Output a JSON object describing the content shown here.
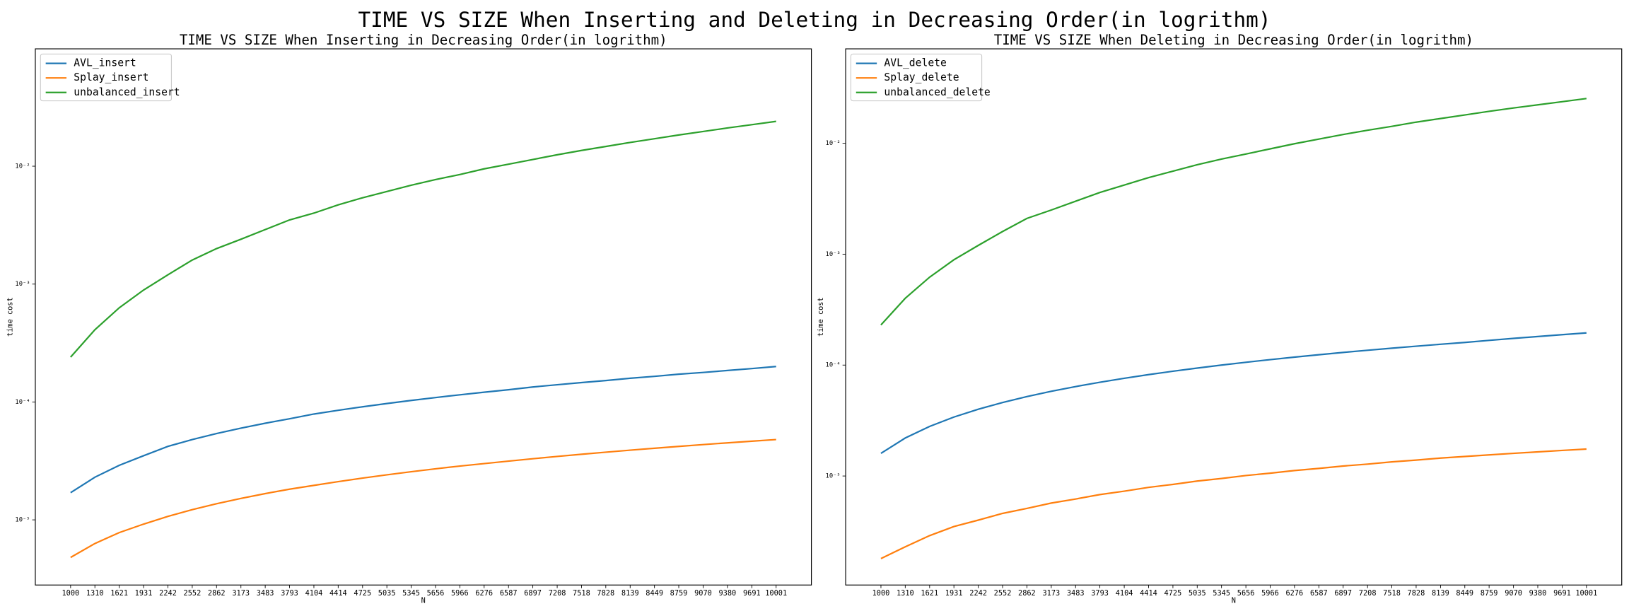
{
  "title": "TIME VS SIZE When Inserting and Deleting in Decreasing Order(in logrithm)",
  "chart_data": [
    {
      "type": "line",
      "title": "TIME VS SIZE When Inserting in Decreasing Order(in logrithm)",
      "x_label": "N",
      "y_label": "time cost",
      "log_y": true,
      "legend": "upper left",
      "x": [
        1000,
        1310,
        1621,
        1931,
        2242,
        2552,
        2862,
        3173,
        3483,
        3793,
        4104,
        4414,
        4725,
        5035,
        5345,
        5656,
        5966,
        6276,
        6587,
        6897,
        7208,
        7518,
        7828,
        8139,
        8449,
        8759,
        9070,
        9380,
        9691,
        10001
      ],
      "series": [
        {
          "name": "AVL_insert",
          "color": "#1f77b4",
          "values": [
            1.7e-05,
            2.3e-05,
            2.9e-05,
            3.5e-05,
            4.2e-05,
            4.8e-05,
            5.4e-05,
            6e-05,
            6.6e-05,
            7.2e-05,
            7.9e-05,
            8.5e-05,
            9.1e-05,
            9.7e-05,
            0.000103,
            0.000109,
            0.000115,
            0.000121,
            0.000127,
            0.000134,
            0.00014,
            0.000146,
            0.000152,
            0.000159,
            0.000165,
            0.000172,
            0.000178,
            0.000185,
            0.000192,
            0.0002
          ]
        },
        {
          "name": "Splay_insert",
          "color": "#ff7f0e",
          "values": [
            4.8e-06,
            6.3e-06,
            7.8e-06,
            9.2e-06,
            1.07e-05,
            1.22e-05,
            1.37e-05,
            1.52e-05,
            1.67e-05,
            1.82e-05,
            1.96e-05,
            2.11e-05,
            2.26e-05,
            2.41e-05,
            2.56e-05,
            2.71e-05,
            2.86e-05,
            3e-05,
            3.15e-05,
            3.3e-05,
            3.45e-05,
            3.6e-05,
            3.75e-05,
            3.9e-05,
            4.05e-05,
            4.2e-05,
            4.35e-05,
            4.5e-05,
            4.65e-05,
            4.8e-05
          ]
        },
        {
          "name": "unbalanced_insert",
          "color": "#2ca02c",
          "values": [
            0.00024,
            0.00041,
            0.00063,
            0.00089,
            0.0012,
            0.0016,
            0.002,
            0.0024,
            0.0029,
            0.0035,
            0.004,
            0.0047,
            0.0054,
            0.0061,
            0.0069,
            0.0077,
            0.0085,
            0.0095,
            0.0104,
            0.0114,
            0.0125,
            0.0136,
            0.0147,
            0.0159,
            0.0171,
            0.0184,
            0.0197,
            0.0211,
            0.0225,
            0.024
          ]
        }
      ],
      "xlim": [
        550,
        10451
      ],
      "ylim": [
        2.8e-06,
        0.099
      ],
      "xticks": [
        1000,
        1310,
        1621,
        1931,
        2242,
        2552,
        2862,
        3173,
        3483,
        3793,
        4104,
        4414,
        4725,
        5035,
        5345,
        5656,
        5966,
        6276,
        6587,
        6897,
        7208,
        7518,
        7828,
        8139,
        8449,
        8759,
        9070,
        9380,
        9691,
        10001
      ],
      "yticks": [
        {
          "value": 1e-05,
          "label": "10⁻⁵"
        },
        {
          "value": 0.0001,
          "label": "10⁻⁴"
        },
        {
          "value": 0.001,
          "label": "10⁻³"
        },
        {
          "value": 0.01,
          "label": "10⁻²"
        }
      ]
    },
    {
      "type": "line",
      "title": "TIME VS SIZE When Deleting in Decreasing Order(in logrithm)",
      "x_label": "N",
      "y_label": "time cost",
      "log_y": true,
      "legend": "upper left",
      "x": [
        1000,
        1310,
        1621,
        1931,
        2242,
        2552,
        2862,
        3173,
        3483,
        3793,
        4104,
        4414,
        4725,
        5035,
        5345,
        5656,
        5966,
        6276,
        6587,
        6897,
        7208,
        7518,
        7828,
        8139,
        8449,
        8759,
        9070,
        9380,
        9691,
        10001
      ],
      "series": [
        {
          "name": "AVL_delete",
          "color": "#1f77b4",
          "values": [
            1.6e-05,
            2.2e-05,
            2.8e-05,
            3.4e-05,
            4e-05,
            4.6e-05,
            5.2e-05,
            5.8e-05,
            6.4e-05,
            7e-05,
            7.6e-05,
            8.2e-05,
            8.8e-05,
            9.4e-05,
            0.0001,
            0.000106,
            0.000112,
            0.000118,
            0.000124,
            0.00013,
            0.000136,
            0.000142,
            0.000148,
            0.000154,
            0.00016,
            0.000167,
            0.000174,
            0.000181,
            0.000188,
            0.000195
          ]
        },
        {
          "name": "Splay_delete",
          "color": "#ff7f0e",
          "values": [
            1.8e-06,
            2.3e-06,
            2.9e-06,
            3.5e-06,
            4e-06,
            4.6e-06,
            5.1e-06,
            5.7e-06,
            6.2e-06,
            6.8e-06,
            7.3e-06,
            7.9e-06,
            8.4e-06,
            9e-06,
            9.5e-06,
            1.01e-05,
            1.06e-05,
            1.12e-05,
            1.17e-05,
            1.23e-05,
            1.28e-05,
            1.34e-05,
            1.39e-05,
            1.45e-05,
            1.5e-05,
            1.55e-05,
            1.6e-05,
            1.65e-05,
            1.7e-05,
            1.75e-05
          ]
        },
        {
          "name": "unbalanced_delete",
          "color": "#2ca02c",
          "values": [
            0.00023,
            0.0004,
            0.00062,
            0.00089,
            0.0012,
            0.0016,
            0.0021,
            0.0025,
            0.003,
            0.0036,
            0.0042,
            0.0049,
            0.0056,
            0.0064,
            0.0072,
            0.008,
            0.0089,
            0.0099,
            0.0109,
            0.012,
            0.0131,
            0.0142,
            0.0155,
            0.0167,
            0.018,
            0.0194,
            0.0208,
            0.0222,
            0.0237,
            0.0253
          ]
        }
      ],
      "xlim": [
        550,
        10451
      ],
      "ylim": [
        1.04e-06,
        0.071
      ],
      "xticks": [
        1000,
        1310,
        1621,
        1931,
        2242,
        2552,
        2862,
        3173,
        3483,
        3793,
        4104,
        4414,
        4725,
        5035,
        5345,
        5656,
        5966,
        6276,
        6587,
        6897,
        7208,
        7518,
        7828,
        8139,
        8449,
        8759,
        9070,
        9380,
        9691,
        10001
      ],
      "yticks": [
        {
          "value": 1e-05,
          "label": "10⁻⁵"
        },
        {
          "value": 0.0001,
          "label": "10⁻⁴"
        },
        {
          "value": 0.001,
          "label": "10⁻³"
        },
        {
          "value": 0.01,
          "label": "10⁻²"
        }
      ]
    }
  ]
}
